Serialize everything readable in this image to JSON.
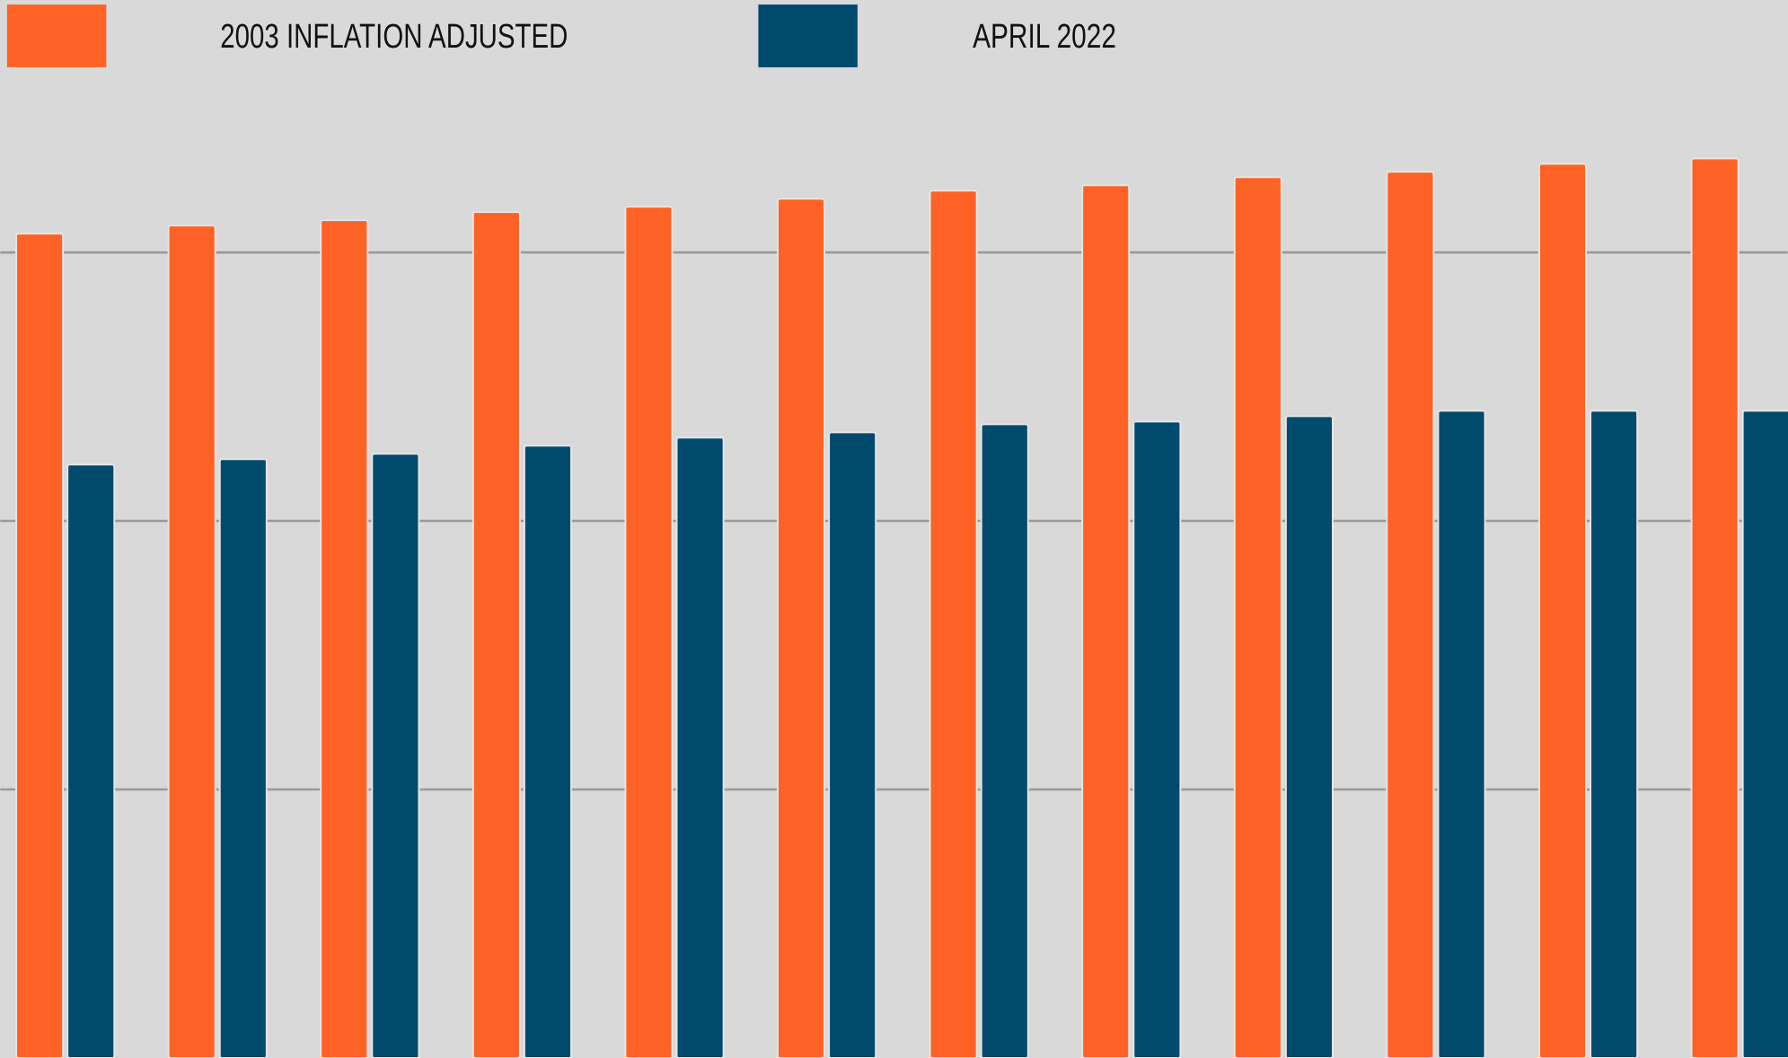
{
  "chart_data": {
    "type": "bar",
    "categories": [
      null,
      null,
      null,
      null,
      null,
      null,
      null,
      null,
      null,
      null,
      null,
      null
    ],
    "series": [
      {
        "name": "2003 INFLATION ADJUSTED",
        "color": "#ff6224",
        "values": [
          3.07,
          3.1,
          3.12,
          3.15,
          3.17,
          3.2,
          3.23,
          3.25,
          3.28,
          3.3,
          3.33,
          3.35
        ]
      },
      {
        "name": "APRIL 2022",
        "color": "#004a6d",
        "values": [
          2.21,
          2.23,
          2.25,
          2.28,
          2.31,
          2.33,
          2.36,
          2.37,
          2.39,
          2.41,
          2.41,
          2.41
        ]
      }
    ],
    "ylim": [
      0,
      3.94
    ],
    "yticks": [
      1,
      2,
      3
    ],
    "grid": true
  }
}
